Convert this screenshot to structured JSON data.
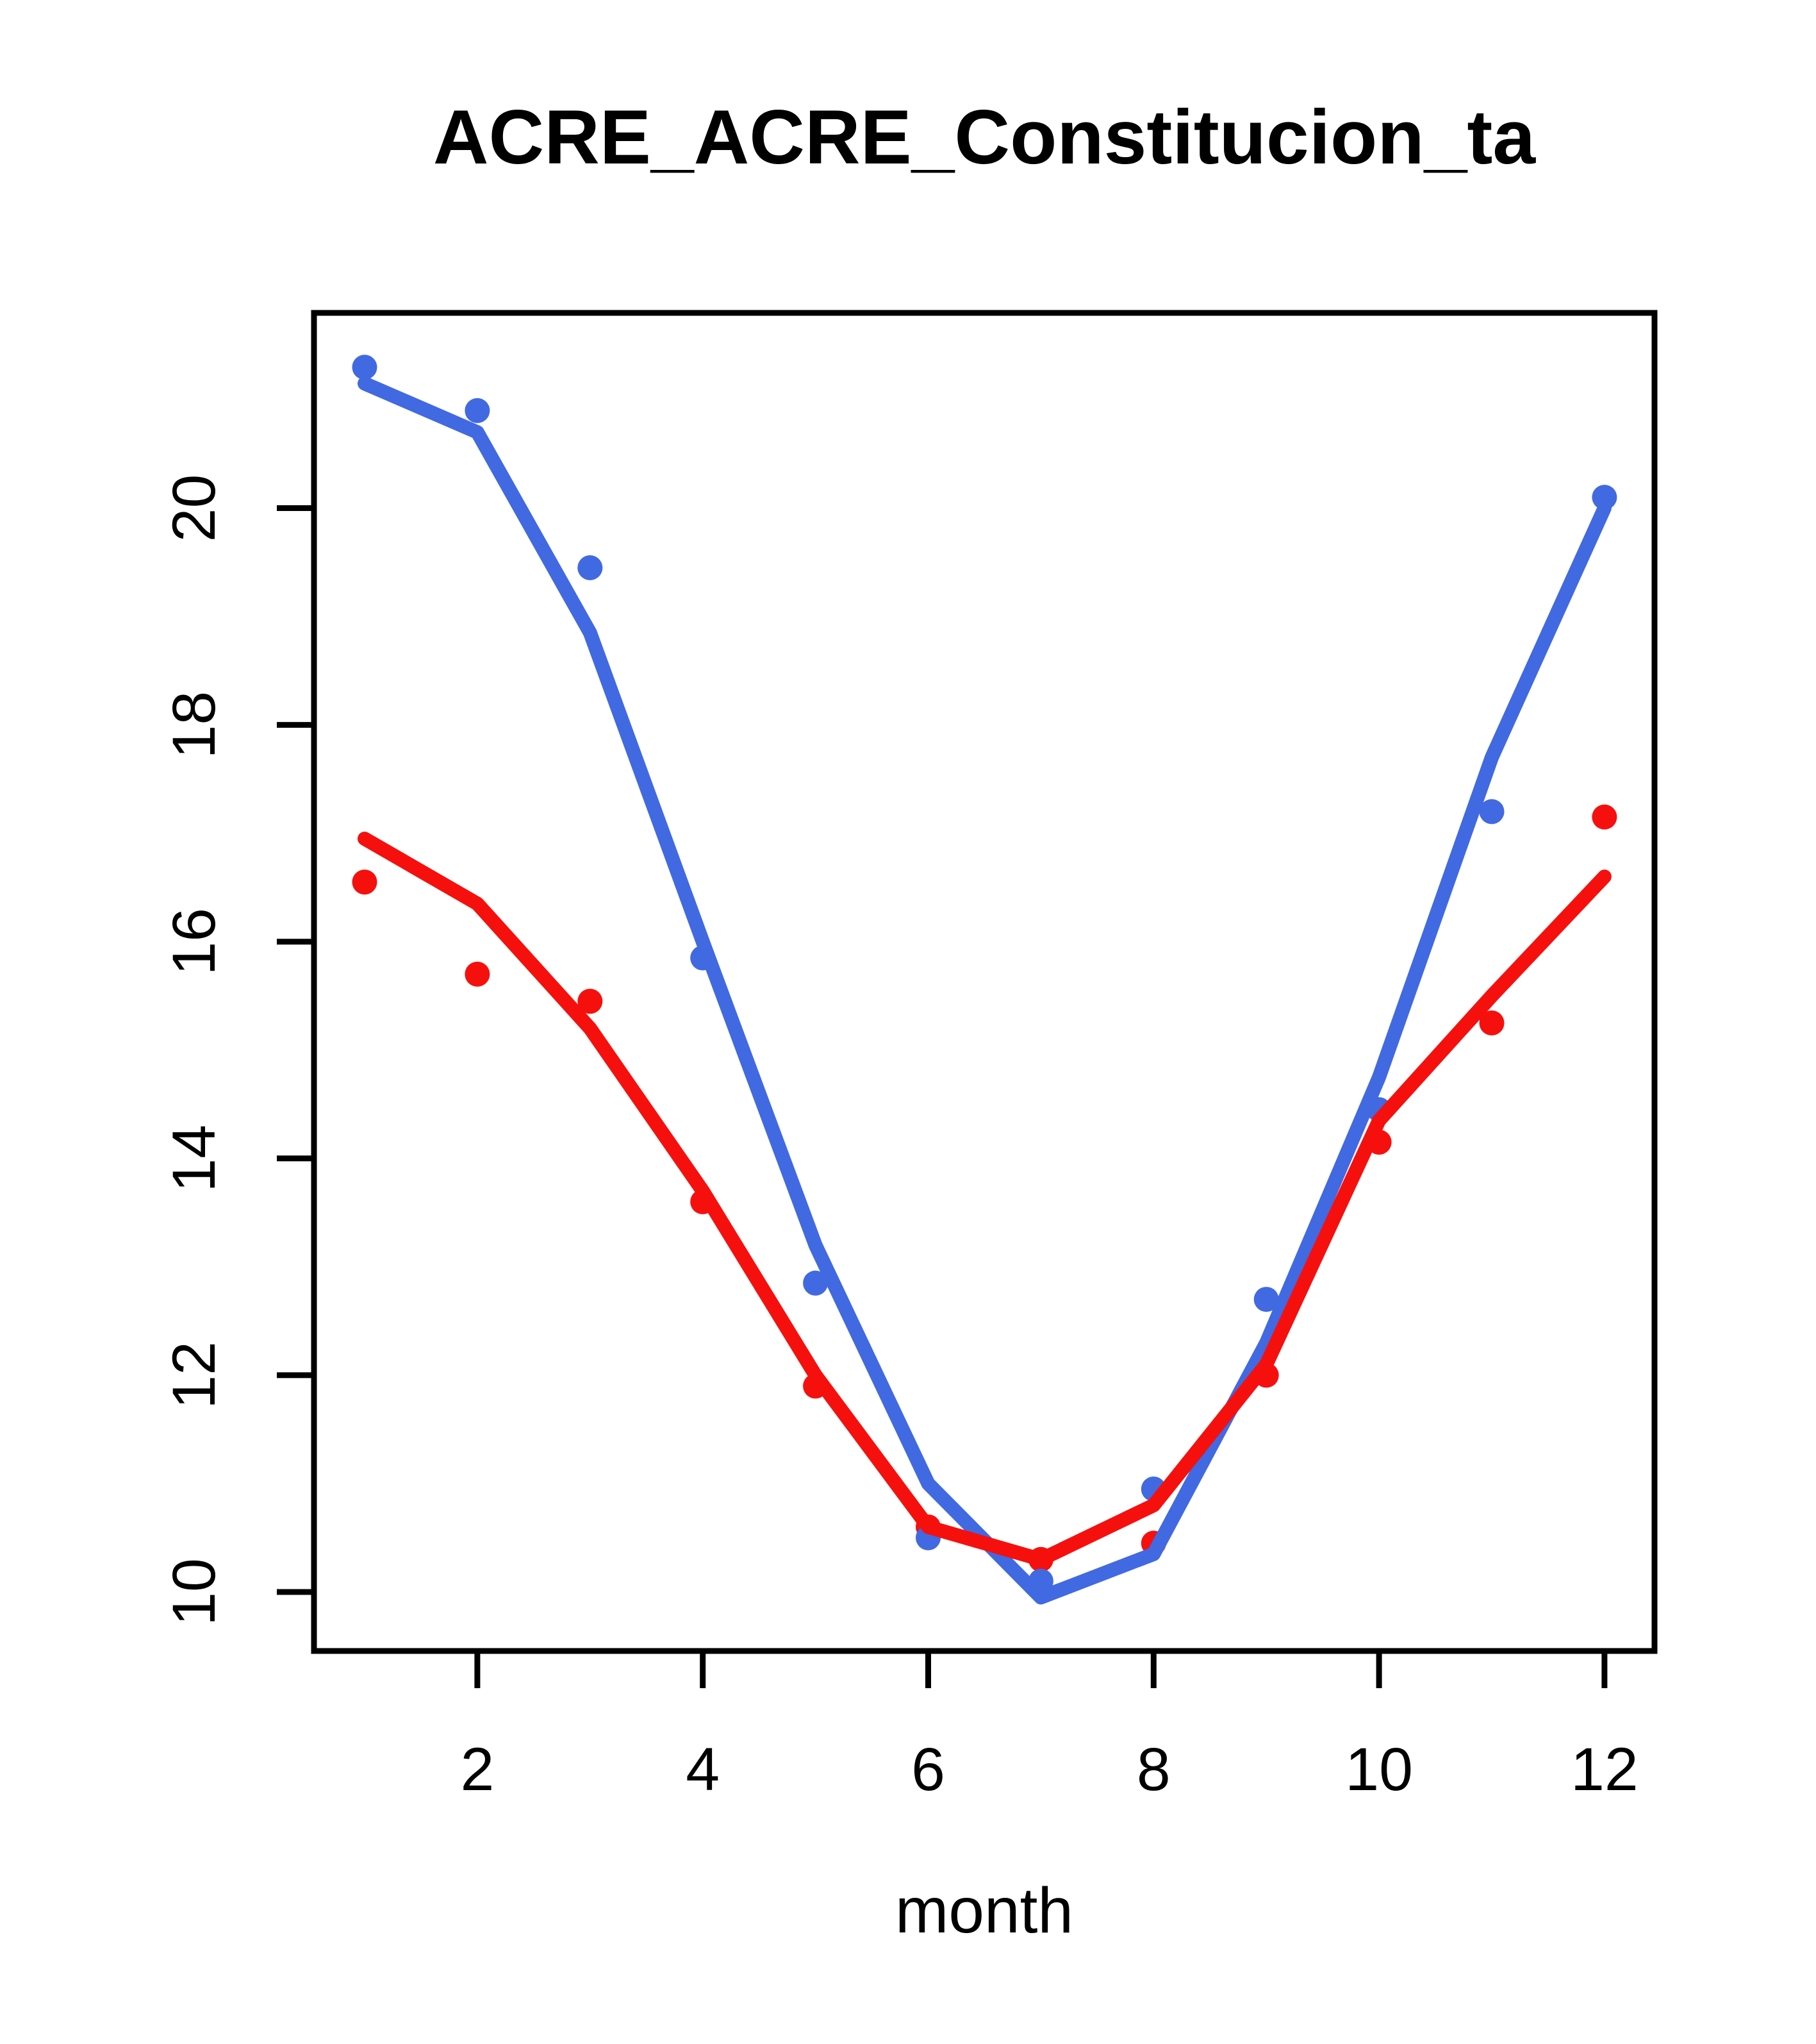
{
  "figure": {
    "title": "ACRE_ACRE_Constitucion_ta",
    "xlabel": "month"
  },
  "chart_data": {
    "type": "scatter",
    "subtype": "scatter points with fitted seasonal lines (R base plot)",
    "title": "ACRE_ACRE_Constitucion_ta",
    "xlabel": "month",
    "ylabel": "",
    "grid": false,
    "legend": null,
    "xlim": [
      0.55,
      12.45
    ],
    "ylim": [
      9.46,
      21.8
    ],
    "x_ticks": [
      2,
      4,
      6,
      8,
      10,
      12
    ],
    "y_ticks": [
      10,
      12,
      14,
      16,
      18,
      20
    ],
    "x": [
      1,
      2,
      3,
      4,
      5,
      6,
      7,
      8,
      9,
      10,
      11,
      12
    ],
    "series": [
      {
        "name": "red_observed_points",
        "role": "scatter",
        "color": "#F5100E",
        "values": [
          16.55,
          15.7,
          15.45,
          13.6,
          11.9,
          10.6,
          10.3,
          10.45,
          12.0,
          14.15,
          15.25,
          17.15
        ]
      },
      {
        "name": "blue_observed_points",
        "role": "scatter",
        "color": "#4169E1",
        "values": [
          21.3,
          20.9,
          19.45,
          15.85,
          12.85,
          10.5,
          10.1,
          10.95,
          12.7,
          14.45,
          17.2,
          20.1
        ]
      },
      {
        "name": "blue_fitted_line",
        "role": "line",
        "color": "#4169E1",
        "values": [
          21.15,
          20.7,
          18.85,
          16.0,
          13.2,
          11.0,
          9.95,
          10.35,
          12.3,
          14.75,
          17.7,
          20.0
        ]
      },
      {
        "name": "red_fitted_line",
        "role": "line",
        "color": "#F5100E",
        "values": [
          16.95,
          16.35,
          15.2,
          13.7,
          12.0,
          10.6,
          10.3,
          10.8,
          12.1,
          14.35,
          15.5,
          16.6
        ]
      }
    ],
    "colors": {
      "blue_series": "#4169E1",
      "red_series": "#F5100E",
      "axis": "#000000",
      "background": "#FFFFFF"
    }
  }
}
